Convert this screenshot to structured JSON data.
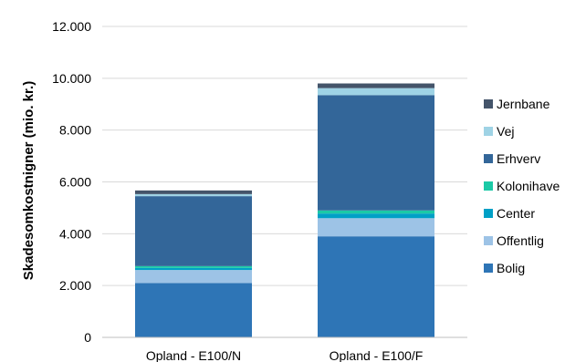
{
  "chart_data": {
    "type": "bar",
    "stacked": true,
    "title": "",
    "ylabel": "Skadesomkostnigner (mio. kr.)",
    "xlabel": "",
    "ylim": [
      0,
      12000
    ],
    "yticks": [
      0,
      2000,
      4000,
      6000,
      8000,
      10000,
      12000
    ],
    "ytick_labels": [
      "0",
      "2.000",
      "4.000",
      "6.000",
      "8.000",
      "10.000",
      "12.000"
    ],
    "grid": true,
    "legend_position": "right",
    "categories": [
      "Opland - E100/N",
      "Opland - E100/F"
    ],
    "series": [
      {
        "name": "Bolig",
        "color": "#2e75b6",
        "values": [
          2100,
          3900
        ]
      },
      {
        "name": "Offentlig",
        "color": "#9dc3e6",
        "values": [
          500,
          700
        ]
      },
      {
        "name": "Center",
        "color": "#00a0c6",
        "values": [
          80,
          180
        ]
      },
      {
        "name": "Kolonihave",
        "color": "#1bc9a6",
        "values": [
          70,
          120
        ]
      },
      {
        "name": "Erhverv",
        "color": "#336699",
        "values": [
          2700,
          4450
        ]
      },
      {
        "name": "Vej",
        "color": "#9fd3e5",
        "values": [
          80,
          270
        ]
      },
      {
        "name": "Jernbane",
        "color": "#44546a",
        "values": [
          140,
          180
        ]
      }
    ]
  }
}
